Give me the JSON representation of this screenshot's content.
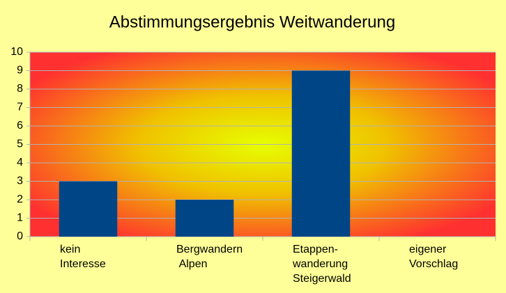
{
  "chart_data": {
    "type": "bar",
    "title": "Abstimmungsergebnis Weitwanderung",
    "categories": [
      [
        "kein",
        "Interesse"
      ],
      [
        "Bergwandern",
        " Alpen"
      ],
      [
        "Etappen-",
        "wanderung",
        "Steigerwald"
      ],
      [
        "eigener",
        "Vorschlag"
      ]
    ],
    "values": [
      3,
      2,
      9,
      0
    ],
    "color": "#004586",
    "ylim": [
      0,
      10
    ],
    "yticks": [
      0,
      1,
      2,
      3,
      4,
      5,
      6,
      7,
      8,
      9,
      10
    ],
    "grid": true
  }
}
